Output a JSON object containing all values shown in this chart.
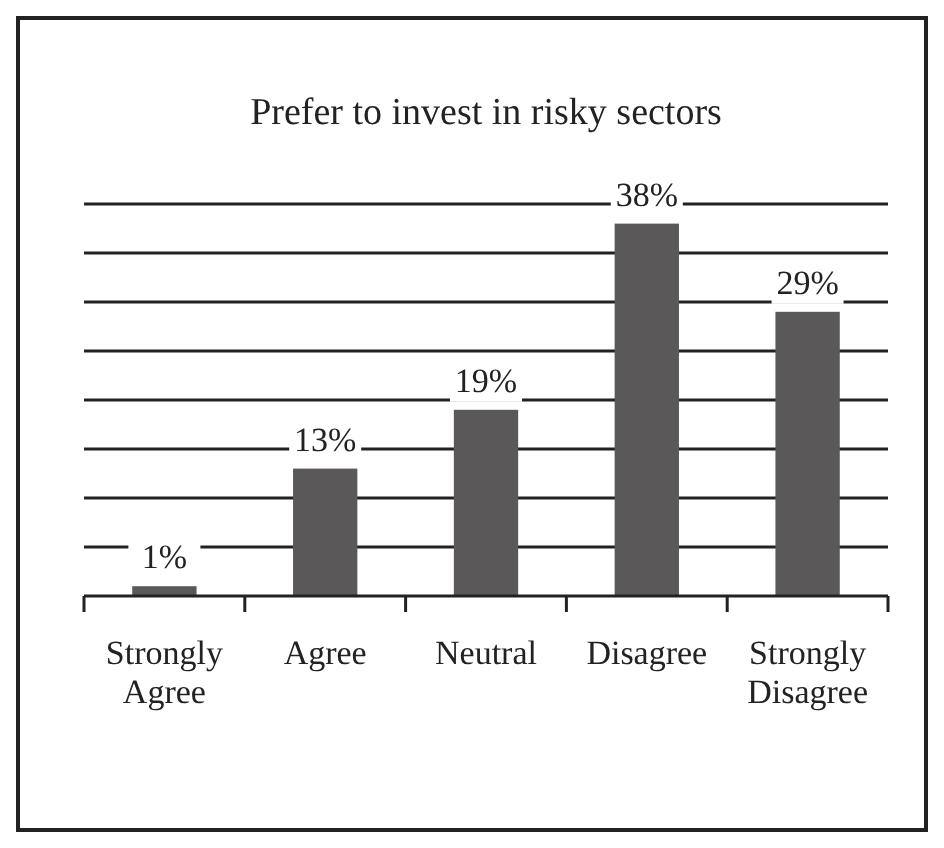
{
  "chart_data": {
    "type": "bar",
    "title": "Prefer to invest in risky sectors",
    "categories": [
      "Strongly Agree",
      "Agree",
      "Neutral",
      "Disagree",
      "Strongly Disagree"
    ],
    "values": [
      1,
      13,
      19,
      38,
      29
    ],
    "value_labels": [
      "1%",
      "13%",
      "19%",
      "38%",
      "29%"
    ],
    "color": "#5a5858",
    "ylim": [
      0,
      40
    ],
    "yticks": [
      {
        "value": 0,
        "label": null
      },
      {
        "value": 5,
        "label": null
      },
      {
        "value": 10,
        "label": null
      },
      {
        "value": 15,
        "label": null
      },
      {
        "value": 20,
        "label": null
      },
      {
        "value": 25,
        "label": null
      },
      {
        "value": 30,
        "label": null
      },
      {
        "value": 35,
        "label": null
      },
      {
        "value": 40,
        "label": null
      }
    ],
    "tick_labels": "x",
    "grid": "y"
  }
}
